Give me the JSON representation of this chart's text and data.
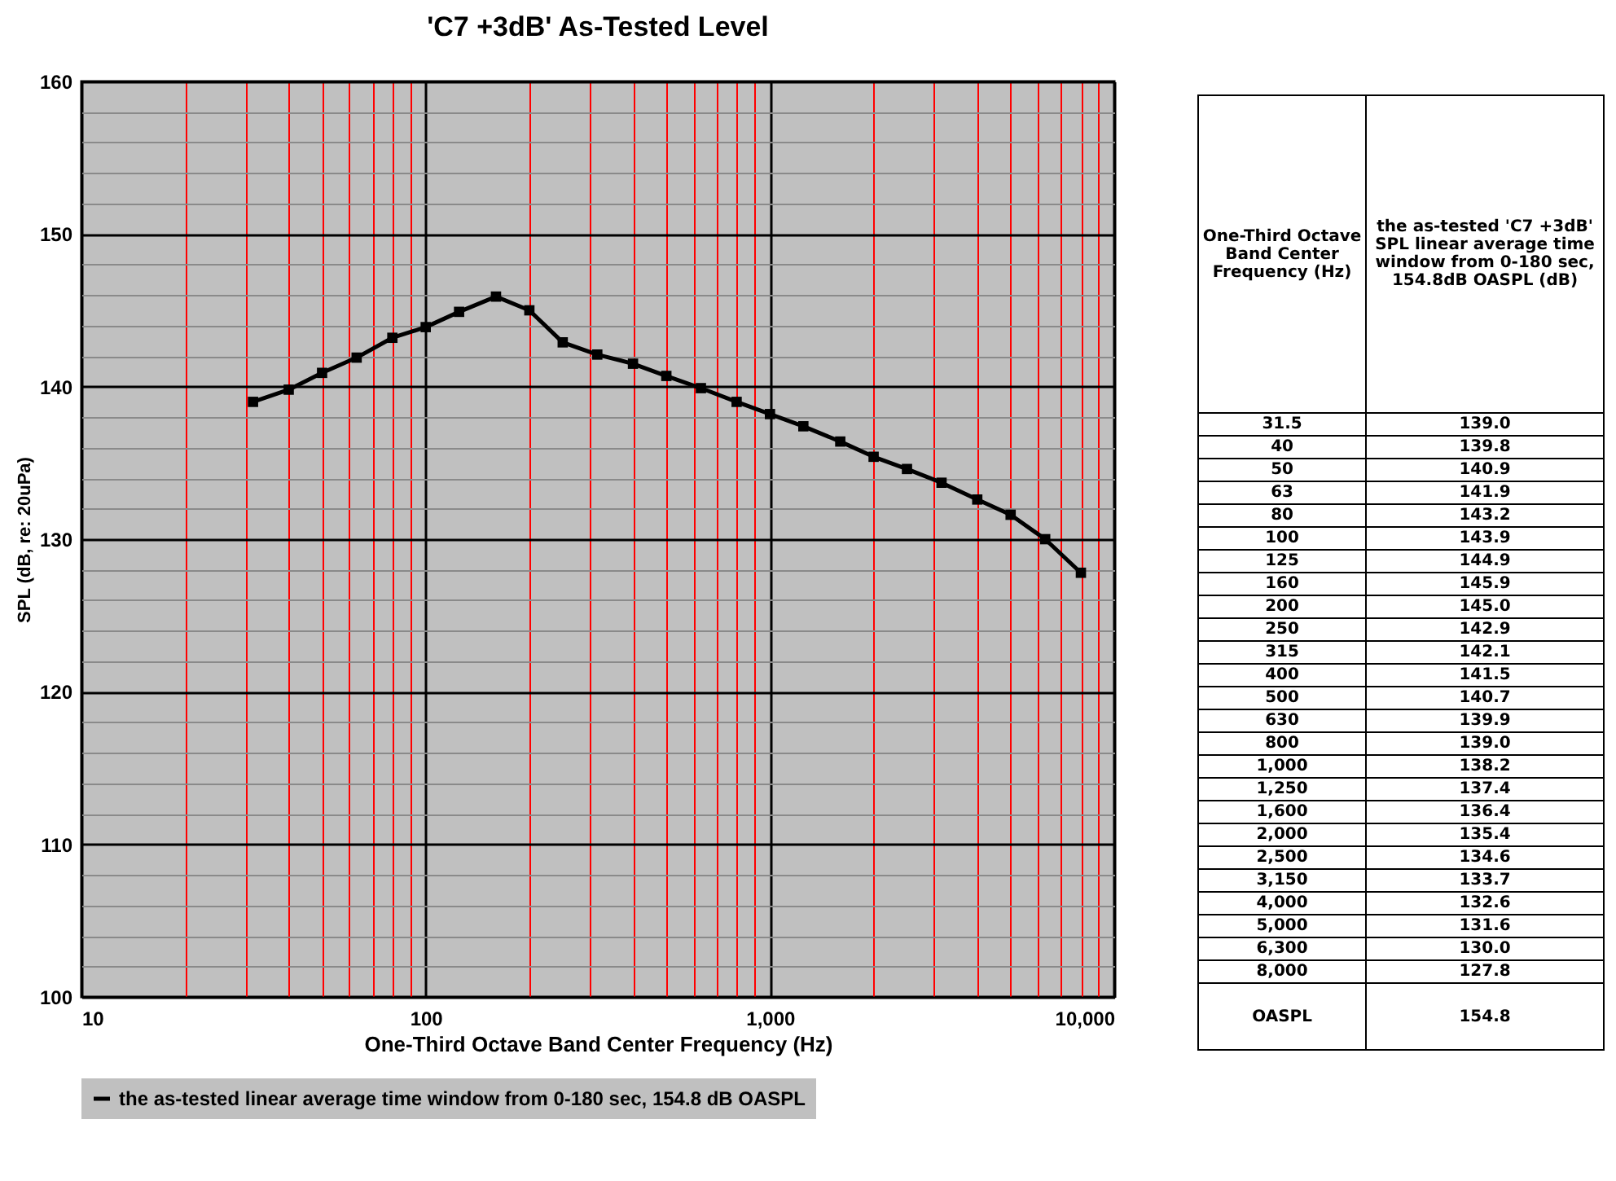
{
  "chart_data": {
    "type": "line",
    "title": "'C7 +3dB' As-Tested Level",
    "xlabel": "One-Third Octave Band Center Frequency (Hz)",
    "ylabel": "SPL (dB, re: 20uPa)",
    "x": [
      31.5,
      40,
      50,
      63,
      80,
      100,
      125,
      160,
      200,
      250,
      315,
      400,
      500,
      630,
      800,
      1000,
      1250,
      1600,
      2000,
      2500,
      3150,
      4000,
      5000,
      6300,
      8000
    ],
    "series": [
      {
        "name": "the as-tested linear average time window from 0-180 sec, 154.8 dB OASPL",
        "color": "#000000",
        "values": [
          139.0,
          139.8,
          140.9,
          141.9,
          143.2,
          143.9,
          144.9,
          145.9,
          145.0,
          142.9,
          142.1,
          141.5,
          140.7,
          139.9,
          139.0,
          138.2,
          137.4,
          136.4,
          135.4,
          134.6,
          133.7,
          132.6,
          131.6,
          130.0,
          127.8
        ]
      }
    ],
    "log": "x",
    "xlim": [
      10,
      10000
    ],
    "ylim": [
      100,
      160
    ],
    "xticks": [
      {
        "value": 10,
        "label": "10"
      },
      {
        "value": 20,
        "label": null
      },
      {
        "value": 30,
        "label": null
      },
      {
        "value": 40,
        "label": null
      },
      {
        "value": 50,
        "label": null
      },
      {
        "value": 60,
        "label": null
      },
      {
        "value": 70,
        "label": null
      },
      {
        "value": 80,
        "label": null
      },
      {
        "value": 90,
        "label": null
      },
      {
        "value": 100,
        "label": "100"
      },
      {
        "value": 200,
        "label": null
      },
      {
        "value": 300,
        "label": null
      },
      {
        "value": 400,
        "label": null
      },
      {
        "value": 500,
        "label": null
      },
      {
        "value": 600,
        "label": null
      },
      {
        "value": 700,
        "label": null
      },
      {
        "value": 800,
        "label": null
      },
      {
        "value": 900,
        "label": null
      },
      {
        "value": 1000,
        "label": "1,000"
      },
      {
        "value": 2000,
        "label": null
      },
      {
        "value": 3000,
        "label": null
      },
      {
        "value": 4000,
        "label": null
      },
      {
        "value": 5000,
        "label": null
      },
      {
        "value": 6000,
        "label": null
      },
      {
        "value": 7000,
        "label": null
      },
      {
        "value": 8000,
        "label": null
      },
      {
        "value": 9000,
        "label": null
      },
      {
        "value": 10000,
        "label": "10,000"
      }
    ],
    "yticks": [
      100,
      {
        "value": 102,
        "label": null
      },
      {
        "value": 104,
        "label": null
      },
      {
        "value": 106,
        "label": null
      },
      {
        "value": 108,
        "label": null
      },
      110,
      {
        "value": 112,
        "label": null
      },
      {
        "value": 114,
        "label": null
      },
      {
        "value": 116,
        "label": null
      },
      {
        "value": 118,
        "label": null
      },
      120,
      {
        "value": 122,
        "label": null
      },
      {
        "value": 124,
        "label": null
      },
      {
        "value": 126,
        "label": null
      },
      {
        "value": 128,
        "label": null
      },
      130,
      {
        "value": 132,
        "label": null
      },
      {
        "value": 134,
        "label": null
      },
      {
        "value": 136,
        "label": null
      },
      {
        "value": 138,
        "label": null
      },
      140,
      {
        "value": 142,
        "label": null
      },
      {
        "value": 144,
        "label": null
      },
      {
        "value": 146,
        "label": null
      },
      {
        "value": 148,
        "label": null
      },
      150,
      {
        "value": 152,
        "label": null
      },
      {
        "value": 154,
        "label": null
      },
      {
        "value": 156,
        "label": null
      },
      {
        "value": 158,
        "label": null
      },
      160
    ],
    "grid": true,
    "legend": "bottom",
    "marker": "square",
    "line_style": "solid",
    "annotations": [
      "One-Third Octave Band Center Frequency (Hz)",
      "the as-tested 'C7 +3dB' SPL linear average time window from 0-180 sec, 154.8dB OASPL (dB)",
      "31.5",
      "139.0",
      "40",
      "139.8",
      "50",
      "140.9",
      "63",
      "141.9",
      "80",
      "143.2",
      "100",
      "143.9",
      "125",
      "144.9",
      "160",
      "145.9",
      "200",
      "145.0",
      "250",
      "142.9",
      "315",
      "142.1",
      "400",
      "141.5",
      "500",
      "140.7",
      "630",
      "139.9",
      "800",
      "139.0",
      "1,000",
      "138.2",
      "1,250",
      "137.4",
      "1,600",
      "136.4",
      "2,000",
      "135.4",
      "2,500",
      "134.6",
      "3,150",
      "133.7",
      "4,000",
      "132.6",
      "5,000",
      "131.6",
      "6,300",
      "130.0",
      "8,000",
      "127.8",
      "OASPL",
      "154.8"
    ]
  }
}
